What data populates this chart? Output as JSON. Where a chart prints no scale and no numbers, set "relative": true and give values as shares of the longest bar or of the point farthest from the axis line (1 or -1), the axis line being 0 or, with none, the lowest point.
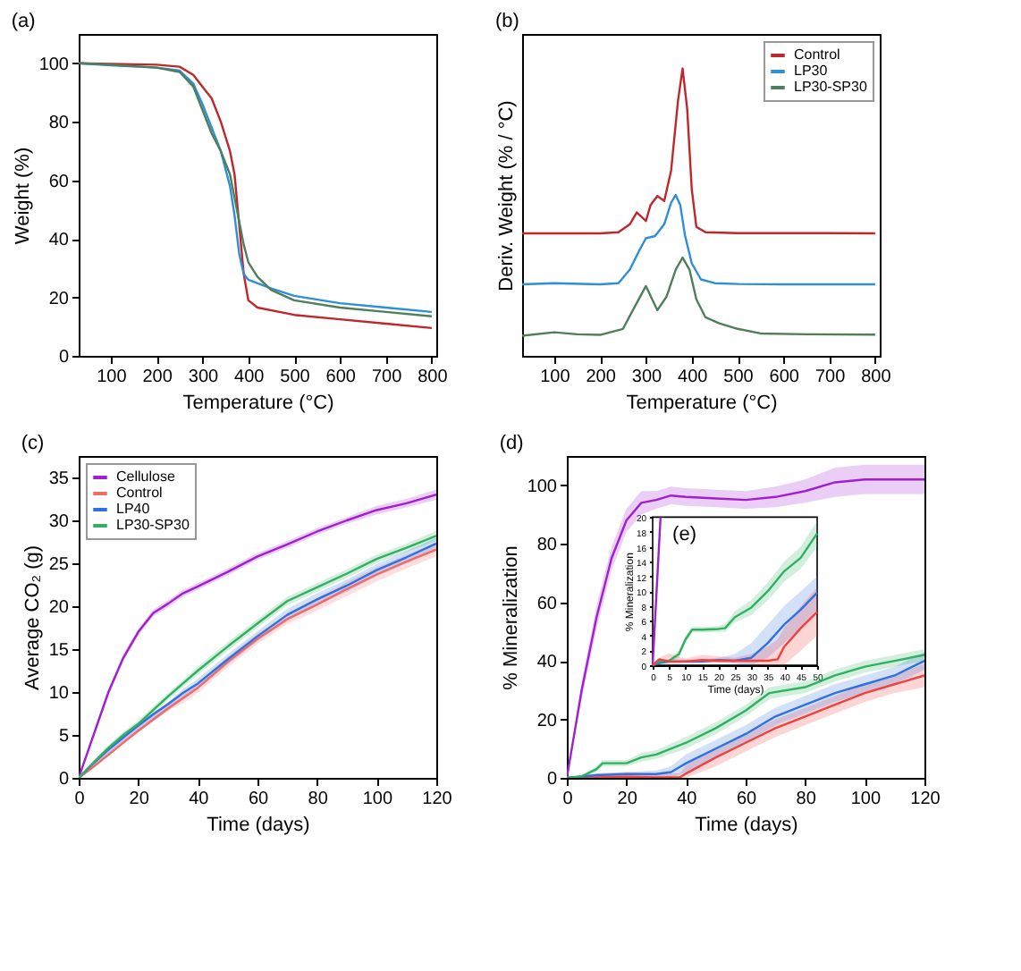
{
  "chart_data": [
    {
      "type": "line",
      "title": "(a)",
      "xlabel": "Temperature (°C)",
      "ylabel": "Weight (%)",
      "xlim": [
        30,
        810
      ],
      "xticks": [
        100,
        200,
        300,
        400,
        500,
        600,
        700,
        800
      ],
      "ylim": [
        0,
        110
      ],
      "yticks": [
        0,
        20,
        40,
        60,
        80,
        100
      ],
      "grid": false,
      "legend": false,
      "series": [
        {
          "color": "#c0272d",
          "x": [
            30,
            100,
            200,
            250,
            280,
            300,
            320,
            340,
            360,
            370,
            380,
            390,
            400,
            420,
            500,
            600,
            700,
            800
          ],
          "values": [
            100,
            99.8,
            99.5,
            98.8,
            96,
            92,
            88,
            80,
            70,
            62,
            45,
            28,
            19,
            16.5,
            14,
            12.5,
            11,
            9.5
          ]
        },
        {
          "color": "#2e8fd8",
          "x": [
            30,
            100,
            200,
            250,
            280,
            300,
            320,
            340,
            360,
            370,
            380,
            390,
            400,
            450,
            500,
            600,
            700,
            800
          ],
          "values": [
            100,
            99.3,
            98.5,
            97.5,
            93,
            86,
            78,
            70,
            58,
            48,
            35,
            28,
            26,
            23,
            20.5,
            18,
            16.5,
            15
          ]
        },
        {
          "color": "#4f7f5a",
          "x": [
            30,
            100,
            200,
            250,
            280,
            300,
            320,
            340,
            360,
            375,
            390,
            400,
            420,
            450,
            500,
            600,
            700,
            800
          ],
          "values": [
            100,
            99.5,
            98.5,
            97,
            92,
            84,
            76,
            70,
            62,
            50,
            38,
            32,
            27,
            22.5,
            19,
            16.5,
            15,
            13.5
          ]
        }
      ]
    },
    {
      "type": "line",
      "title": "(b)",
      "xlabel": "Temperature (°C)",
      "ylabel": "Deriv. Weight (% / °C)",
      "xlim": [
        30,
        810
      ],
      "xticks": [
        100,
        200,
        300,
        400,
        500,
        600,
        700,
        800
      ],
      "relative": true,
      "grid": false,
      "legend": "top right",
      "series": [
        {
          "name": "Control",
          "color": "#c0272d",
          "x": [
            30,
            100,
            200,
            240,
            265,
            280,
            295,
            300,
            310,
            325,
            340,
            355,
            370,
            380,
            390,
            400,
            410,
            430,
            500,
            600,
            700,
            800
          ],
          "values": [
            0.426,
            0.426,
            0.426,
            0.43,
            0.458,
            0.499,
            0.477,
            0.469,
            0.524,
            0.556,
            0.539,
            0.645,
            0.888,
            1.0,
            0.86,
            0.58,
            0.449,
            0.43,
            0.427,
            0.427,
            0.427,
            0.426
          ]
        },
        {
          "name": "LP30",
          "color": "#2e8fd8",
          "x": [
            30,
            100,
            200,
            240,
            265,
            285,
            300,
            320,
            340,
            355,
            365,
            375,
            385,
            400,
            420,
            450,
            500,
            600,
            700,
            800
          ],
          "values": [
            0.249,
            0.253,
            0.249,
            0.253,
            0.3,
            0.365,
            0.409,
            0.417,
            0.458,
            0.533,
            0.56,
            0.524,
            0.421,
            0.322,
            0.266,
            0.253,
            0.25,
            0.249,
            0.249,
            0.249
          ]
        },
        {
          "name": "LP30-SP30",
          "color": "#4f7f5a",
          "x": [
            30,
            100,
            150,
            200,
            250,
            275,
            300,
            325,
            345,
            365,
            380,
            395,
            410,
            430,
            460,
            500,
            550,
            650,
            800
          ],
          "values": [
            0.07,
            0.082,
            0.075,
            0.073,
            0.094,
            0.169,
            0.243,
            0.159,
            0.206,
            0.3,
            0.342,
            0.3,
            0.197,
            0.134,
            0.113,
            0.094,
            0.078,
            0.075,
            0.074
          ]
        }
      ]
    },
    {
      "type": "line",
      "title": "(c)",
      "xlabel": "Time (days)",
      "ylabel": "Average CO₂ (g)",
      "xlim": [
        0,
        120
      ],
      "xticks": [
        0,
        20,
        40,
        60,
        80,
        100,
        120
      ],
      "ylim": [
        0,
        37.5
      ],
      "yticks": [
        0,
        5,
        10,
        15,
        20,
        25,
        30,
        35
      ],
      "grid": false,
      "legend": "top left",
      "x": [
        0,
        5,
        10,
        15,
        20,
        25,
        30,
        35,
        40,
        50,
        60,
        70,
        80,
        90,
        100,
        110,
        120
      ],
      "series": [
        {
          "name": "Cellulose",
          "color": "#a020d0",
          "values": [
            0,
            5,
            10,
            14,
            17,
            19.2,
            20.3,
            21.5,
            22.3,
            24,
            25.8,
            27.2,
            28.7,
            30,
            31.2,
            32,
            33
          ],
          "lower": [
            0,
            4.7,
            9.6,
            13.6,
            16.6,
            18.8,
            19.9,
            21.1,
            21.9,
            23.6,
            25.4,
            26.8,
            28.3,
            29.6,
            30.7,
            31.5,
            32.4
          ],
          "upper": [
            0,
            5.3,
            10.4,
            14.4,
            17.4,
            19.6,
            20.7,
            21.9,
            22.7,
            24.4,
            26.2,
            27.6,
            29.1,
            30.4,
            31.7,
            32.5,
            33.6
          ]
        },
        {
          "name": "Control",
          "color": "#f06a6a",
          "values": [
            0,
            1.3,
            2.7,
            4.1,
            5.5,
            6.8,
            8.1,
            9.3,
            10.5,
            13.5,
            16.2,
            18.5,
            20.2,
            22,
            23.7,
            25.2,
            26.6
          ],
          "lower": [
            0,
            1.3,
            2.7,
            4,
            5.3,
            6.6,
            7.8,
            8.7,
            9.9,
            12.9,
            15.6,
            17.9,
            19.5,
            21.2,
            22.9,
            24.4,
            25.8
          ],
          "upper": [
            0,
            1.7,
            3.3,
            4.8,
            6.3,
            7.6,
            8.8,
            9.9,
            11.1,
            14.1,
            16.8,
            19.1,
            20.9,
            22.8,
            24.5,
            26,
            27.4
          ]
        },
        {
          "name": "LP40",
          "color": "#3070e0",
          "values": [
            0,
            1.7,
            3.3,
            4.7,
            6.1,
            7.4,
            8.6,
            9.9,
            11,
            13.8,
            16.5,
            19,
            20.8,
            22.4,
            24.2,
            25.7,
            27.3
          ],
          "lower": [
            0,
            1.3,
            2.7,
            4,
            5.3,
            6.6,
            7.8,
            9.1,
            10.4,
            13.2,
            15.9,
            18.3,
            20.1,
            21.7,
            23.5,
            25,
            26.6
          ],
          "upper": [
            0,
            1.7,
            3.3,
            4.8,
            6.3,
            7.6,
            8.8,
            10.3,
            11.6,
            14.4,
            17.1,
            19.7,
            21.5,
            23.1,
            24.9,
            26.4,
            28
          ]
        },
        {
          "name": "LP30-SP30",
          "color": "#30b060",
          "values": [
            0,
            1.8,
            3.5,
            5,
            6.3,
            7.9,
            9.5,
            11,
            12.5,
            15.3,
            18,
            20.6,
            22.2,
            23.8,
            25.5,
            26.8,
            28.2
          ],
          "lower": [
            0,
            1.6,
            3.2,
            4.6,
            5.9,
            7.5,
            9.1,
            10.6,
            12,
            14.8,
            17.5,
            20.1,
            21.7,
            23.3,
            25,
            26.3,
            27.6
          ],
          "upper": [
            0,
            2,
            3.8,
            5.4,
            6.7,
            8.3,
            9.9,
            11.4,
            13,
            15.8,
            18.5,
            21.1,
            22.7,
            24.3,
            26,
            27.3,
            28.8
          ]
        }
      ]
    },
    {
      "type": "line",
      "title": "(d)",
      "xlabel": "Time (days)",
      "ylabel": "% Mineralization",
      "xlim": [
        0,
        120
      ],
      "xticks": [
        0,
        20,
        40,
        60,
        80,
        100,
        120
      ],
      "ylim": [
        0,
        110
      ],
      "yticks": [
        0,
        20,
        40,
        60,
        80,
        100
      ],
      "grid": false,
      "legend": false,
      "series": [
        {
          "color": "#a020d0",
          "x": [
            0,
            5,
            10,
            15,
            20,
            25,
            30,
            35,
            40,
            50,
            60,
            70,
            80,
            90,
            100,
            110,
            120
          ],
          "values": [
            0,
            30,
            55,
            75,
            88,
            94,
            95,
            96.5,
            96,
            95.5,
            95,
            96,
            98,
            101,
            102,
            102,
            102
          ],
          "lower": [
            0,
            27,
            51,
            71,
            84,
            90,
            92,
            93.5,
            93,
            92.5,
            92,
            92.5,
            94,
            96,
            97,
            97,
            97
          ],
          "upper": [
            0,
            33,
            59,
            79,
            92,
            98,
            98,
            99.5,
            99,
            98.5,
            98,
            99.5,
            102,
            106,
            107,
            107,
            107
          ]
        },
        {
          "color": "#f04040",
          "x": [
            0,
            10,
            20,
            30,
            38,
            40,
            50,
            60,
            70,
            80,
            90,
            100,
            110,
            120
          ],
          "values": [
            0,
            0.2,
            0.4,
            0.2,
            0.2,
            1.5,
            7,
            12,
            17,
            21,
            25,
            29,
            32,
            35
          ],
          "lower": [
            0,
            0,
            0,
            0,
            0,
            0,
            4,
            9,
            14,
            18,
            22,
            26,
            29,
            31
          ],
          "upper": [
            0,
            1.5,
            2,
            1.5,
            1.5,
            4.5,
            10,
            15,
            20,
            24,
            28,
            32,
            35,
            39
          ]
        },
        {
          "color": "#3070e0",
          "x": [
            0,
            10,
            20,
            30,
            35,
            40,
            50,
            60,
            70,
            80,
            90,
            100,
            110,
            120
          ],
          "values": [
            0,
            0.9,
            1.3,
            1.3,
            2,
            5,
            10,
            15,
            21,
            25,
            29,
            32,
            35,
            40
          ],
          "lower": [
            0,
            0,
            0,
            0,
            0,
            2,
            7,
            12,
            18,
            22,
            26,
            29,
            32,
            37
          ],
          "upper": [
            0,
            1.5,
            2,
            2.5,
            4,
            8,
            13,
            18,
            24,
            28,
            32,
            35,
            38,
            43
          ]
        },
        {
          "color": "#30b060",
          "x": [
            0,
            5,
            10,
            12,
            20,
            25,
            30,
            40,
            50,
            60,
            68,
            80,
            90,
            100,
            110,
            120
          ],
          "values": [
            0,
            0.5,
            3,
            5,
            5,
            7,
            8,
            12,
            17,
            23,
            29,
            31,
            35,
            38,
            40,
            42
          ],
          "lower": [
            0,
            0,
            2,
            4,
            4,
            5.5,
            6.5,
            10,
            15,
            21,
            27,
            29,
            33,
            36,
            38,
            40
          ],
          "upper": [
            0,
            1,
            4,
            6,
            6,
            8.5,
            9.5,
            14,
            19,
            25,
            31,
            33,
            37,
            40,
            42,
            44
          ]
        }
      ]
    },
    {
      "type": "line",
      "title": "(e)",
      "xlabel": "Time (days)",
      "ylabel": "% Mineralization",
      "xlim": [
        0,
        50
      ],
      "xticks": [
        0,
        5,
        10,
        15,
        20,
        25,
        30,
        35,
        40,
        45,
        50
      ],
      "ylim": [
        0,
        20
      ],
      "yticks": [
        0,
        2,
        4,
        6,
        8,
        10,
        12,
        14,
        16,
        18,
        20
      ],
      "grid": false,
      "legend": false,
      "series": [
        {
          "color": "#a020d0",
          "x": [
            0,
            2.4
          ],
          "values": [
            0,
            20
          ]
        },
        {
          "color": "#3070e0",
          "x": [
            0,
            2,
            5,
            10,
            15,
            20,
            25,
            30,
            35,
            40,
            45,
            50
          ],
          "values": [
            0,
            0.3,
            0.5,
            0.5,
            0.5,
            0.7,
            0.6,
            1,
            3,
            5.5,
            7.5,
            9.8
          ],
          "lower": [
            0,
            0.2,
            0.3,
            0.3,
            0.3,
            0.4,
            0.2,
            0,
            1,
            3,
            5,
            7.5
          ],
          "upper": [
            0,
            0.8,
            0.8,
            0.8,
            0.8,
            1,
            1.5,
            3,
            5.5,
            8,
            10,
            12
          ]
        },
        {
          "color": "#30b060",
          "x": [
            0,
            2,
            5,
            8,
            10,
            12,
            15,
            20,
            22,
            25,
            30,
            35,
            40,
            45,
            50
          ],
          "values": [
            0,
            0.5,
            0.6,
            1.5,
            3.5,
            4.8,
            4.8,
            4.9,
            5,
            6.5,
            7.8,
            10,
            12.7,
            14.5,
            17.8
          ],
          "lower": [
            0,
            0.3,
            0.4,
            1,
            3,
            4.4,
            4.4,
            4.5,
            4.5,
            5.8,
            6.8,
            8.8,
            11.3,
            13,
            16
          ],
          "upper": [
            0,
            0.7,
            0.8,
            2,
            4,
            5.2,
            5.2,
            5.3,
            5.6,
            7.3,
            8.8,
            11.2,
            14,
            16,
            19.5
          ]
        },
        {
          "color": "#f04040",
          "x": [
            0,
            2,
            5,
            10,
            15,
            20,
            25,
            30,
            35,
            38,
            40,
            45,
            50
          ],
          "values": [
            0,
            0.8,
            0.5,
            0.5,
            0.7,
            0.6,
            0.6,
            0.6,
            0.6,
            0.8,
            2.5,
            5,
            7.2
          ],
          "lower": [
            0,
            0.2,
            0.2,
            0.3,
            0.3,
            0.3,
            0.3,
            0.2,
            0,
            0,
            0,
            2,
            4
          ],
          "upper": [
            0,
            1,
            1.6,
            0.9,
            1.4,
            1.2,
            1,
            1.5,
            2.5,
            3.5,
            5,
            8,
            10.5
          ]
        }
      ]
    }
  ]
}
